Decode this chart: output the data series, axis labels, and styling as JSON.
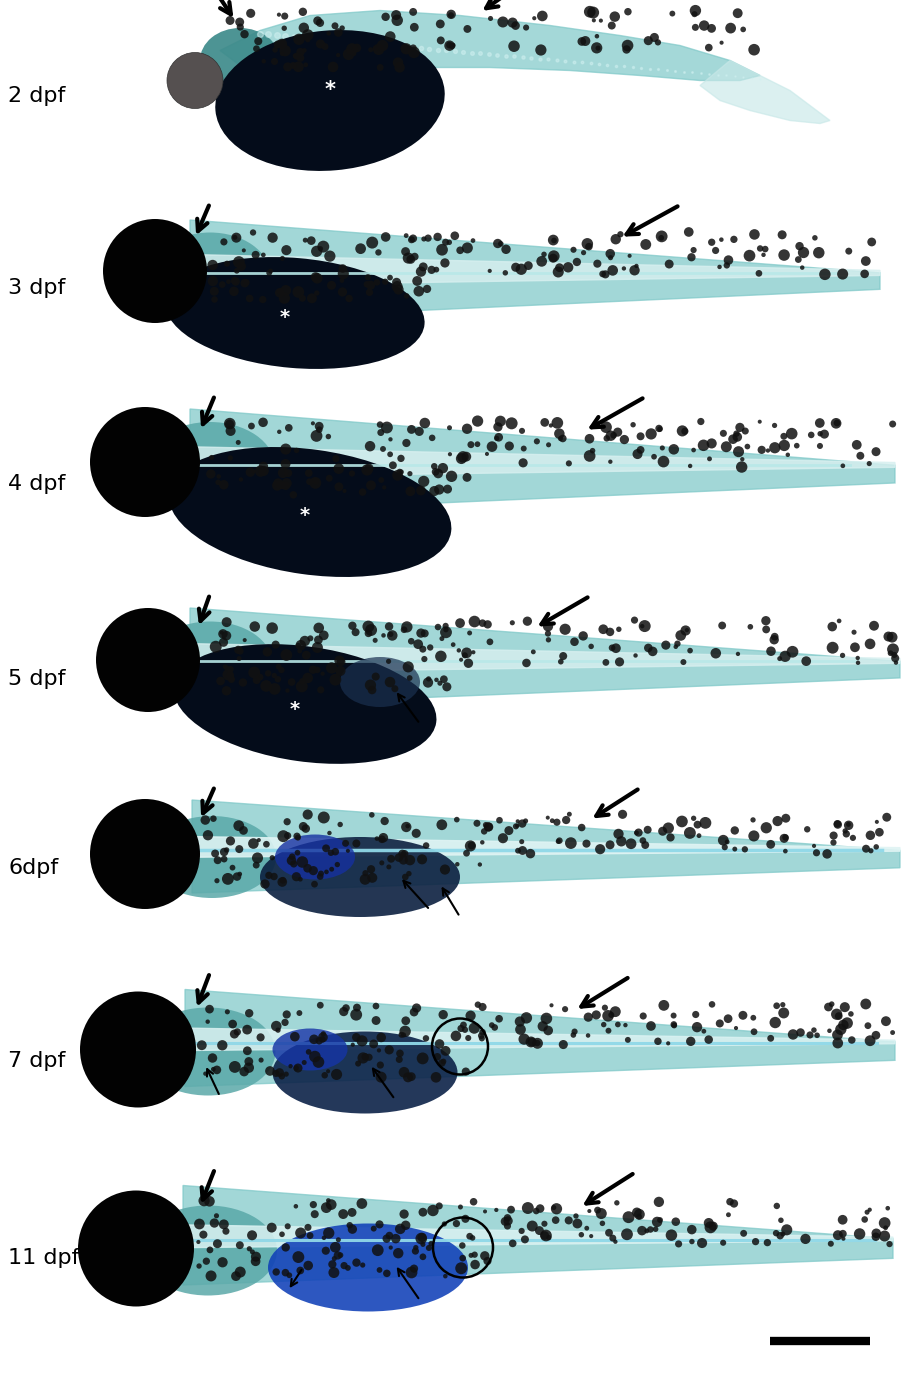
{
  "background_color": "#ffffff",
  "labels": [
    "2 dpf",
    "3 dpf",
    "4 dpf",
    "5 dpf",
    "6dpf",
    "7 dpf",
    "11 dpf"
  ],
  "label_fontsize": 16,
  "label_color": "black",
  "label_fontweight": "normal",
  "scale_bar_color": "black",
  "scale_bar_lw": 6,
  "body_teal": "#7ec8c8",
  "body_teal_dark": "#5aa8a8",
  "body_light": "#c8e8e8",
  "yolk_color": "#040c1a",
  "eye_color": "#060606",
  "brain_teal": "#3a8888",
  "spinal_line": "#a0d8d8",
  "gut_blue": "#102860",
  "liver_blue": "#1848b0",
  "arrow_thick_lw": 3.0,
  "arrow_thin_lw": 1.5,
  "arrow_mutation": 20,
  "arrow_thin_mutation": 12
}
